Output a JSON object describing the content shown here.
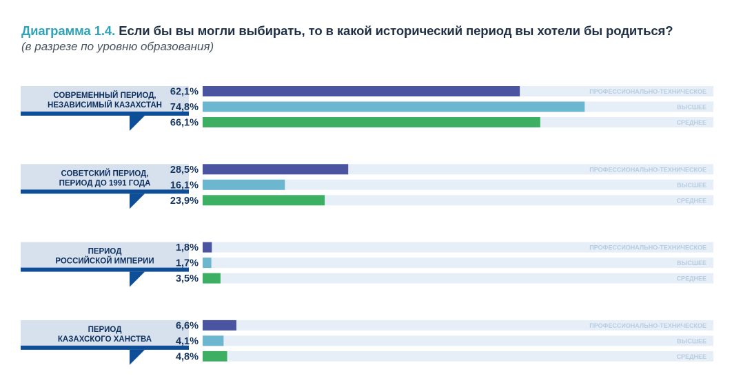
{
  "title_prefix": "Диаграмма 1.4.",
  "title_text": "Если бы вы могли выбирать, то в какой исторический период вы хотели бы родиться?",
  "subtitle": "(в разрезе по уровню образования)",
  "colors": {
    "professional": "#4a54a0",
    "higher": "#6cb6cf",
    "secondary": "#3daf62",
    "track": "#e6eef8",
    "label_box": "#d7e1ee",
    "label_band": "#0d4e96",
    "value_text": "#16365f",
    "series_text": "#b9cde0",
    "category_text": "#0d2f5e"
  },
  "chart_data": {
    "type": "bar",
    "orientation": "horizontal",
    "title": "Диаграмма 1.4. Если бы вы могли выбирать, то в какой исторический период вы хотели бы родиться?",
    "subtitle": "(в разрезе по уровню образования)",
    "unit": "%",
    "xlim": [
      0,
      100
    ],
    "grid": false,
    "series_names": [
      "ПРОФЕССИОНАЛЬНО-ТЕХНИЧЕСКОЕ",
      "ВЫСШЕЕ",
      "СРЕДНЕЕ"
    ],
    "groups": [
      {
        "label": [
          "СОВРЕМЕННЫЙ ПЕРИОД,",
          "НЕЗАВИСИМЫЙ КАЗАХСТАН"
        ],
        "values": [
          62.1,
          74.8,
          66.1
        ],
        "value_labels": [
          "62,1%",
          "74,8%",
          "66,1%"
        ]
      },
      {
        "label": [
          "СОВЕТСКИЙ ПЕРИОД,",
          "ПЕРИОД ДО 1991 ГОДА"
        ],
        "values": [
          28.5,
          16.1,
          23.9
        ],
        "value_labels": [
          "28,5%",
          "16,1%",
          "23,9%"
        ]
      },
      {
        "label": [
          "ПЕРИОД",
          "РОССИЙСКОЙ ИМПЕРИИ"
        ],
        "values": [
          1.8,
          1.7,
          3.5
        ],
        "value_labels": [
          "1,8%",
          "1,7%",
          "3,5%"
        ]
      },
      {
        "label": [
          "ПЕРИОД",
          "КАЗАХСКОГО ХАНСТВА"
        ],
        "values": [
          6.6,
          4.1,
          4.8
        ],
        "value_labels": [
          "6,6%",
          "4,1%",
          "4,8%"
        ]
      }
    ]
  }
}
